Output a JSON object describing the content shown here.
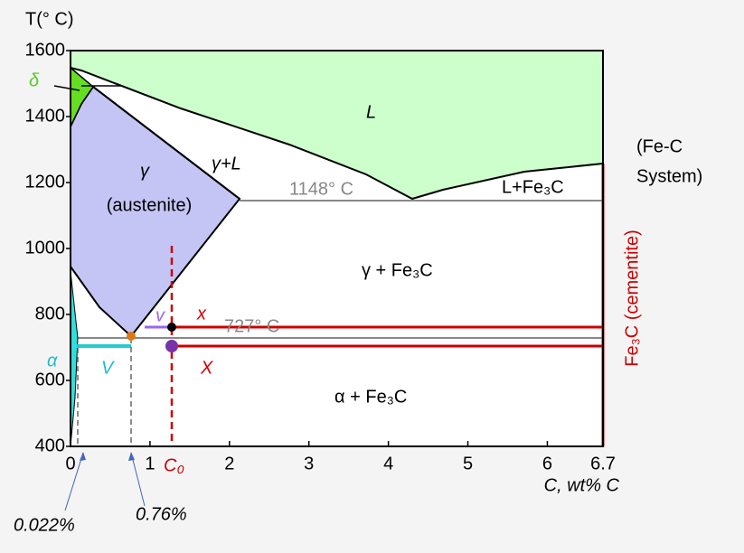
{
  "axes": {
    "y_label": "T(°  C)",
    "x_label": "C, wt% C",
    "xlim": [
      0,
      6.7
    ],
    "ylim": [
      400,
      1600
    ],
    "xticks": [
      0,
      1,
      2,
      3,
      4,
      5,
      6,
      6.7
    ],
    "yticks": [
      400,
      600,
      800,
      1000,
      1200,
      1400,
      1600
    ]
  },
  "labels": {
    "liquid": "L",
    "gamma_liquid": "γ+L",
    "gamma": "γ",
    "austenite": "(austenite)",
    "liquid_fe3c": "L+Fe₃C",
    "gamma_fe3c": "γ + Fe₃C",
    "alpha_fe3c": "α + Fe₃C",
    "alpha": "α",
    "delta": "δ",
    "system_1": "(Fe-C",
    "system_2": "System)",
    "cementite": "Fe₃C (cementite)",
    "eutectic": "1148°  C",
    "eutectoid": "727°  C",
    "v_small": "v",
    "x_small": "x",
    "v_big": "V",
    "x_big": "X",
    "c0": "C₀",
    "alpha_limit": "0.022%",
    "eutectoid_comp": "0.76%"
  }
}
